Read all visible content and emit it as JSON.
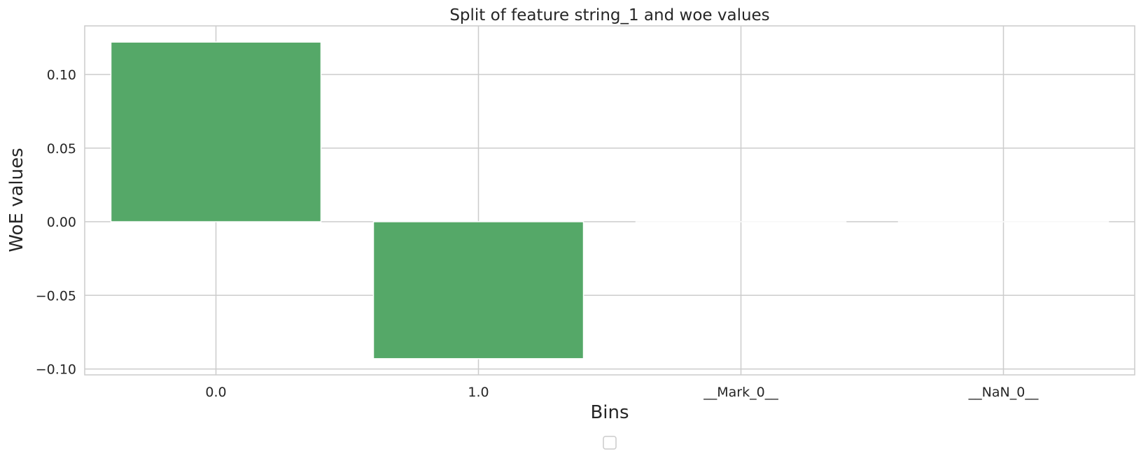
{
  "chart_data": {
    "type": "bar",
    "title": "Split of feature string_1 and woe values",
    "xlabel": "Bins",
    "ylabel": "WoE values",
    "categories": [
      "0.0",
      "1.0",
      "__Mark_0__",
      "__NaN_0__"
    ],
    "values": [
      0.122,
      -0.093,
      0.0,
      0.0
    ],
    "ylim": [
      -0.104,
      0.133
    ],
    "yticks": [
      0.1,
      0.05,
      0.0,
      -0.05,
      -0.1
    ],
    "ytick_labels": [
      "0.10",
      "0.05",
      "0.00",
      "−0.05",
      "−0.10"
    ],
    "grid": true,
    "legend": "bottom-center (empty)",
    "colors": {
      "bar": "#55a868",
      "grid": "#cccccc",
      "frame": "#cccccc",
      "text": "#262626"
    }
  }
}
